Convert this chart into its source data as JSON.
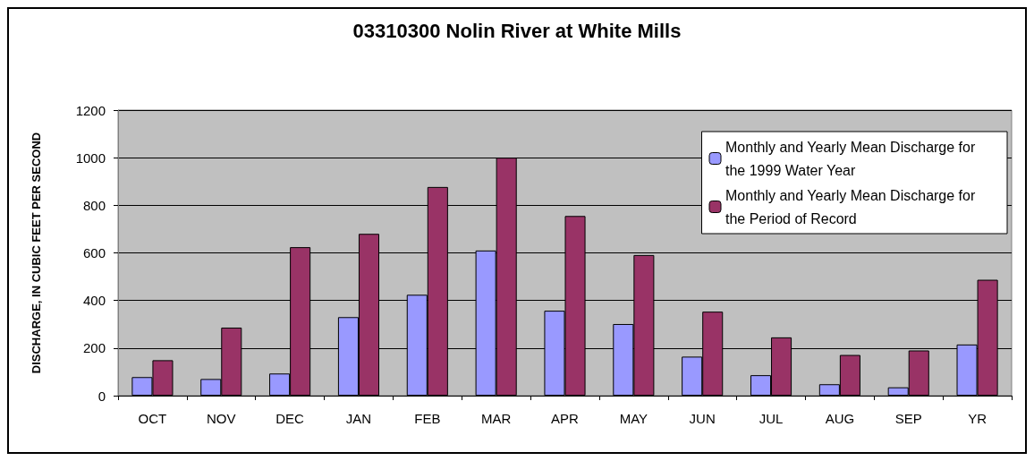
{
  "chart_data": {
    "type": "bar",
    "title": "03310300 Nolin River at White Mills",
    "ylabel": "DISCHARGE, IN CUBIC FEET PER SECOND",
    "categories": [
      "OCT",
      "NOV",
      "DEC",
      "JAN",
      "FEB",
      "MAR",
      "APR",
      "MAY",
      "JUN",
      "JUL",
      "AUG",
      "SEP",
      "YR"
    ],
    "series": [
      {
        "name": "Monthly and Yearly Mean Discharge for the 1999 Water Year",
        "color": "#9999ff",
        "values": [
          78,
          70,
          93,
          330,
          424,
          610,
          357,
          301,
          164,
          86,
          48,
          35,
          215
        ]
      },
      {
        "name": "Monthly and Yearly Mean Discharge for the Period of Record",
        "color": "#993366",
        "values": [
          149,
          286,
          624,
          680,
          877,
          1000,
          755,
          591,
          353,
          245,
          171,
          190,
          487
        ]
      }
    ],
    "ylim": [
      0,
      1200
    ],
    "yticks": [
      0,
      200,
      400,
      600,
      800,
      1000,
      1200
    ],
    "grid": "y",
    "legend": "top right"
  }
}
